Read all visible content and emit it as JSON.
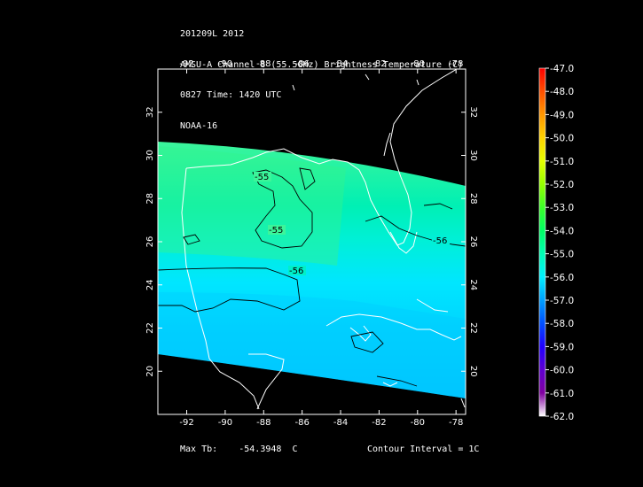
{
  "header": {
    "line1": "201209L 2012",
    "line2": "AMSU-A Channel 8 (55.5GHz) Brightness Temperature (C)",
    "line3": "0827 Time: 1420 UTC",
    "line4": "NOAA-16"
  },
  "map": {
    "lon_ticks_bottom": [
      "-92",
      "-90",
      "-88",
      "-86",
      "-84",
      "-82",
      "-80",
      "-78"
    ],
    "lon_ticks_top": [
      "-92",
      "-90",
      "-88",
      "-86",
      "-84",
      "-82",
      "-80",
      "-78"
    ],
    "lat_ticks_left": [
      "20",
      "22",
      "24",
      "26",
      "28",
      "30",
      "32"
    ],
    "lat_ticks_right": [
      "20",
      "22",
      "24",
      "26",
      "28",
      "30",
      "32"
    ],
    "lon_range": [
      -93.5,
      -77.5
    ],
    "lat_range": [
      18,
      34
    ],
    "contour_labels": [
      "-55",
      "-55",
      "-56",
      "-56"
    ],
    "coastline_color": "#ffffff",
    "contour_color": "#000000"
  },
  "colorbar": {
    "labels": [
      "-47.0",
      "-48.0",
      "-49.0",
      "-50.0",
      "-51.0",
      "-52.0",
      "-53.0",
      "-54.0",
      "-55.0",
      "-56.0",
      "-57.0",
      "-58.0",
      "-59.0",
      "-60.0",
      "-61.0",
      "-62.0"
    ],
    "colors": [
      "#ff0000",
      "#ff5000",
      "#ff9600",
      "#ffd200",
      "#e6ff00",
      "#96ff00",
      "#3cff28",
      "#00ff64",
      "#00ffb4",
      "#00f0ff",
      "#00a0ff",
      "#0050ff",
      "#2000ff",
      "#6000d0",
      "#8000a0",
      "#ffffff"
    ]
  },
  "footer": {
    "max_label": "Max Tb:",
    "max_value": "-54.3948",
    "max_unit": "C",
    "contour_interval": "Contour Interval = 1C"
  }
}
